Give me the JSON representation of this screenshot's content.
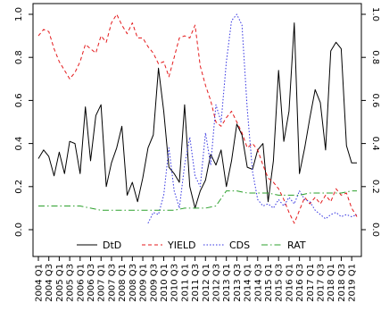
{
  "chart_data": {
    "type": "line",
    "x_categories": [
      "2004 Q1",
      "2004 Q3",
      "2005 Q1",
      "2005 Q3",
      "2006 Q1",
      "2006 Q3",
      "2007 Q1",
      "2007 Q3",
      "2008 Q1",
      "2008 Q3",
      "2009 Q1",
      "2009 Q3",
      "2010 Q1",
      "2010 Q3",
      "2011 Q1",
      "2011 Q3",
      "2012 Q1",
      "2012 Q3",
      "2013 Q1",
      "2013 Q3",
      "2014 Q1",
      "2014 Q3",
      "2015 Q1",
      "2015 Q3",
      "2016 Q1",
      "2016 Q3",
      "2017 Q1",
      "2017 Q3",
      "2018 Q1",
      "2018 Q3",
      "2019 Q1"
    ],
    "ylim": [
      0,
      1
    ],
    "y_ticks": [
      "0.0",
      "0.2",
      "0.4",
      "0.6",
      "0.8",
      "1.0"
    ],
    "y_right_ticks": [
      "0.0",
      "0.2",
      "0.4",
      "0.6",
      "0.8",
      "1.0"
    ],
    "legend_position": "bottom inside plot",
    "series": [
      {
        "name": "DtD",
        "color": "#000000",
        "dash": "solid",
        "x": [
          0,
          0.5,
          1,
          1.5,
          2,
          2.5,
          3,
          3.5,
          4,
          4.5,
          5,
          5.5,
          6,
          6.5,
          7,
          7.5,
          8,
          8.5,
          9,
          9.5,
          10,
          10.5,
          11,
          11.5,
          12,
          12.5,
          13,
          13.5,
          14,
          14.5,
          15,
          15.5,
          16,
          16.5,
          17,
          17.5,
          18,
          18.5,
          19,
          19.5,
          20,
          20.5,
          21,
          21.5,
          22,
          22.5,
          23,
          23.5,
          24,
          24.5,
          25,
          25.5,
          26,
          26.5,
          27,
          27.5,
          28,
          28.5,
          29,
          29.5,
          30,
          30.5
        ],
        "values": [
          0.33,
          0.37,
          0.34,
          0.25,
          0.36,
          0.26,
          0.41,
          0.4,
          0.26,
          0.57,
          0.32,
          0.53,
          0.58,
          0.2,
          0.31,
          0.38,
          0.48,
          0.16,
          0.22,
          0.13,
          0.24,
          0.38,
          0.44,
          0.75,
          0.55,
          0.29,
          0.26,
          0.22,
          0.58,
          0.2,
          0.1,
          0.18,
          0.23,
          0.35,
          0.3,
          0.37,
          0.2,
          0.32,
          0.49,
          0.44,
          0.29,
          0.28,
          0.37,
          0.4,
          0.13,
          0.32,
          0.74,
          0.41,
          0.55,
          0.96,
          0.26,
          0.38,
          0.52,
          0.65,
          0.59,
          0.37,
          0.83,
          0.87,
          0.84,
          0.39,
          0.31,
          0.31
        ]
      },
      {
        "name": "YIELD",
        "color": "#e41a1c",
        "dash": "4,3",
        "x": [
          0,
          0.5,
          1,
          1.5,
          2,
          2.5,
          3,
          3.5,
          4,
          4.5,
          5,
          5.5,
          6,
          6.5,
          7,
          7.5,
          8,
          8.5,
          9,
          9.5,
          10,
          10.5,
          11,
          11.5,
          12,
          12.5,
          13,
          13.5,
          14,
          14.5,
          15,
          15.5,
          16,
          16.5,
          17,
          17.5,
          18,
          18.5,
          19,
          19.5,
          20,
          20.5,
          21,
          21.5,
          22,
          22.5,
          23,
          23.5,
          24,
          24.5,
          25,
          25.5,
          26,
          26.5,
          27,
          27.5,
          28,
          28.5,
          29,
          29.5,
          30,
          30.5
        ],
        "values": [
          0.9,
          0.93,
          0.92,
          0.84,
          0.78,
          0.74,
          0.7,
          0.73,
          0.78,
          0.86,
          0.84,
          0.82,
          0.9,
          0.87,
          0.96,
          1.0,
          0.95,
          0.91,
          0.96,
          0.89,
          0.89,
          0.85,
          0.82,
          0.77,
          0.78,
          0.71,
          0.8,
          0.89,
          0.9,
          0.89,
          0.95,
          0.76,
          0.67,
          0.6,
          0.5,
          0.48,
          0.52,
          0.55,
          0.5,
          0.45,
          0.38,
          0.4,
          0.37,
          0.3,
          0.24,
          0.22,
          0.19,
          0.14,
          0.08,
          0.03,
          0.09,
          0.15,
          0.12,
          0.15,
          0.12,
          0.16,
          0.13,
          0.19,
          0.16,
          0.17,
          0.1,
          0.06
        ]
      },
      {
        "name": "CDS",
        "color": "#3030e0",
        "dash": "1.5,2",
        "x": [
          10.5,
          11,
          11.5,
          12,
          12.5,
          13,
          13.5,
          14,
          14.5,
          15,
          15.5,
          16,
          16.5,
          17,
          17.5,
          18,
          18.5,
          19,
          19.5,
          20,
          20.5,
          21,
          21.5,
          22,
          22.5,
          23,
          23.5,
          24,
          24.5,
          25,
          25.5,
          26,
          26.5,
          27,
          27.5,
          28,
          28.5,
          29,
          29.5,
          30,
          30.5
        ],
        "values": [
          0.03,
          0.08,
          0.07,
          0.16,
          0.38,
          0.18,
          0.1,
          0.3,
          0.43,
          0.25,
          0.2,
          0.45,
          0.3,
          0.58,
          0.5,
          0.78,
          0.97,
          1.0,
          0.95,
          0.56,
          0.27,
          0.14,
          0.11,
          0.12,
          0.1,
          0.14,
          0.11,
          0.15,
          0.12,
          0.18,
          0.14,
          0.13,
          0.09,
          0.07,
          0.05,
          0.07,
          0.08,
          0.06,
          0.07,
          0.06,
          0.07
        ]
      },
      {
        "name": "RAT",
        "color": "#2ca02c",
        "dash": "7,3,1.5,3",
        "x": [
          0,
          1,
          2,
          3,
          4,
          5,
          6,
          7,
          8,
          9,
          10,
          11,
          12,
          13,
          14,
          15,
          16,
          17,
          18,
          19,
          20,
          21,
          22,
          23,
          24,
          25,
          26,
          27,
          28,
          29,
          30,
          30.5
        ],
        "values": [
          0.11,
          0.11,
          0.11,
          0.11,
          0.11,
          0.1,
          0.09,
          0.09,
          0.09,
          0.09,
          0.09,
          0.09,
          0.09,
          0.09,
          0.1,
          0.1,
          0.1,
          0.11,
          0.18,
          0.18,
          0.17,
          0.17,
          0.17,
          0.16,
          0.16,
          0.16,
          0.17,
          0.17,
          0.17,
          0.17,
          0.18,
          0.18
        ]
      }
    ]
  }
}
